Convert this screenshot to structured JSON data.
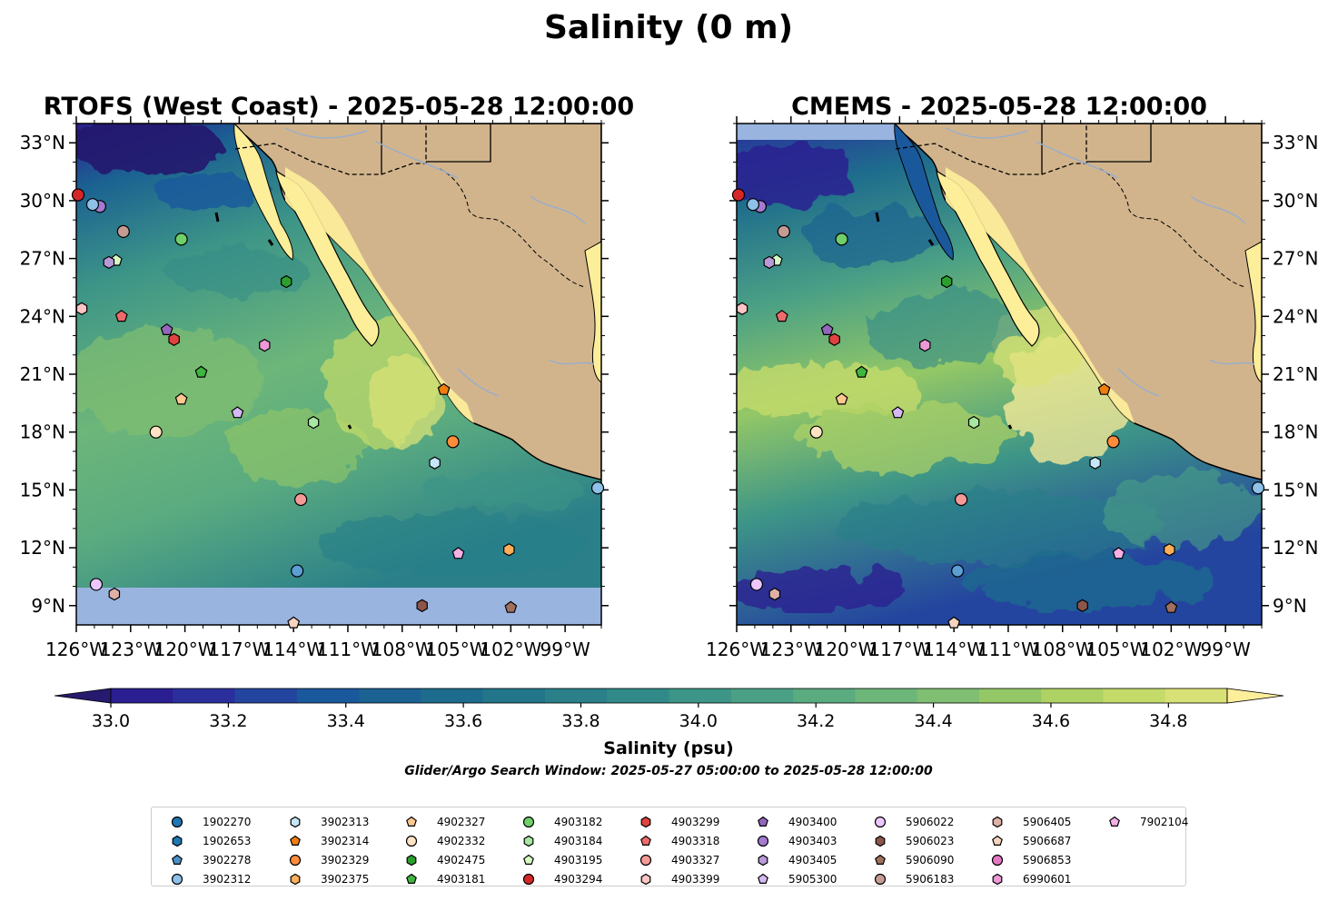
{
  "figure": {
    "suptitle": "Salinity (0 m)",
    "left_title": "RTOFS (West Coast) - 2025-05-28 12:00:00",
    "right_title": "CMEMS - 2025-05-28 12:00:00",
    "colorbar_label": "Salinity (psu)",
    "search_window": "Glider/Argo Search Window: 2025-05-27 05:00:00 to 2025-05-28 12:00:00"
  },
  "colors": {
    "land": "#d2b48c",
    "nodata": "#9ab4e0",
    "river": "#9aaecb",
    "high_salinity": "#fdee9a"
  },
  "chart_data": {
    "type": "map",
    "variable": "Salinity",
    "units": "psu",
    "lon_range": [
      -126,
      -97
    ],
    "lat_range": [
      8,
      34
    ],
    "lon_ticks": [
      "126°W",
      "123°W",
      "120°W",
      "117°W",
      "114°W",
      "111°W",
      "108°W",
      "105°W",
      "102°W",
      "99°W"
    ],
    "lat_ticks": [
      "33°N",
      "30°N",
      "27°N",
      "24°N",
      "21°N",
      "18°N",
      "15°N",
      "12°N",
      "9°N"
    ],
    "colorbar": {
      "min": 32.9,
      "max": 34.9,
      "step": 0.1,
      "ticks": [
        "33.0",
        "33.2",
        "33.4",
        "33.6",
        "33.8",
        "34.0",
        "34.2",
        "34.4",
        "34.6",
        "34.8"
      ],
      "extend": "both",
      "colors": [
        "#251a6e",
        "#2b1e91",
        "#2a2f9d",
        "#24459f",
        "#1a589c",
        "#1b6292",
        "#1e6c8d",
        "#23768a",
        "#2a7f89",
        "#328a88",
        "#3d9587",
        "#4aa085",
        "#5aab80",
        "#6db67a",
        "#80be71",
        "#94c866",
        "#aed264",
        "#c4db6a",
        "#d8e176",
        "#fdee9a"
      ]
    },
    "floats": [
      {
        "id": "1902270",
        "color": "#1f77b4",
        "marker": "circle"
      },
      {
        "id": "1902653",
        "color": "#1f77b4",
        "marker": "hexagon"
      },
      {
        "id": "3902278",
        "color": "#4a90c8",
        "marker": "pentagon"
      },
      {
        "id": "3902312",
        "color": "#8fc1e9",
        "marker": "circle",
        "lon": -97.2,
        "lat": 15.1
      },
      {
        "id": "3902313",
        "color": "#c6e7fa",
        "marker": "hexagon",
        "lon": -106.2,
        "lat": 16.4
      },
      {
        "id": "3902314",
        "color": "#f07d0f",
        "marker": "pentagon",
        "lon": -105.7,
        "lat": 20.2
      },
      {
        "id": "3902329",
        "color": "#ff8c3a",
        "marker": "circle",
        "lon": -105.2,
        "lat": 17.5
      },
      {
        "id": "3902375",
        "color": "#ffae5a",
        "marker": "hexagon",
        "lon": -102.1,
        "lat": 11.9
      },
      {
        "id": "4902327",
        "color": "#ffc791",
        "marker": "pentagon",
        "lon": -120.2,
        "lat": 19.7
      },
      {
        "id": "4902332",
        "color": "#ffe3c4",
        "marker": "circle",
        "lon": -121.6,
        "lat": 18.0
      },
      {
        "id": "4902475",
        "color": "#2ca02c",
        "marker": "hexagon",
        "lon": -114.4,
        "lat": 25.8
      },
      {
        "id": "4903181",
        "color": "#3fb63f",
        "marker": "pentagon",
        "lon": -119.1,
        "lat": 21.1
      },
      {
        "id": "4903182",
        "color": "#6fd06a",
        "marker": "circle",
        "lon": -120.2,
        "lat": 28.0
      },
      {
        "id": "4903184",
        "color": "#a7e8a0",
        "marker": "hexagon",
        "lon": -112.9,
        "lat": 18.5
      },
      {
        "id": "4903195",
        "color": "#d8fbc4",
        "marker": "pentagon",
        "lon": -123.8,
        "lat": 26.9
      },
      {
        "id": "4903294",
        "color": "#d62728",
        "marker": "circle",
        "lon": -125.9,
        "lat": 30.3
      },
      {
        "id": "4903299",
        "color": "#e0433f",
        "marker": "hexagon",
        "lon": -120.6,
        "lat": 22.8
      },
      {
        "id": "4903318",
        "color": "#ef6b6b",
        "marker": "pentagon",
        "lon": -123.5,
        "lat": 24.0
      },
      {
        "id": "4903327",
        "color": "#f59a96",
        "marker": "circle",
        "lon": -113.6,
        "lat": 14.5
      },
      {
        "id": "4903399",
        "color": "#ffc4c4",
        "marker": "hexagon",
        "lon": -125.7,
        "lat": 24.4
      },
      {
        "id": "4903400",
        "color": "#9467bd",
        "marker": "pentagon",
        "lon": -121.0,
        "lat": 23.3
      },
      {
        "id": "4903403",
        "color": "#a57ad0",
        "marker": "circle",
        "lon": -124.7,
        "lat": 29.7
      },
      {
        "id": "4903405",
        "color": "#b99ad9",
        "marker": "hexagon",
        "lon": -124.2,
        "lat": 26.8
      },
      {
        "id": "5905300",
        "color": "#d6b8f5",
        "marker": "pentagon",
        "lon": -117.1,
        "lat": 19.0
      },
      {
        "id": "5906022",
        "color": "#ecc6ff",
        "marker": "circle",
        "lon": -124.9,
        "lat": 10.1
      },
      {
        "id": "5906023",
        "color": "#8c564b",
        "marker": "hexagon",
        "lon": -106.9,
        "lat": 9.0
      },
      {
        "id": "5906090",
        "color": "#a0705e",
        "marker": "pentagon",
        "lon": -102.0,
        "lat": 8.9
      },
      {
        "id": "5906183",
        "color": "#c49c94",
        "marker": "circle",
        "lon": -123.4,
        "lat": 28.4
      },
      {
        "id": "5906405",
        "color": "#dfb1a6",
        "marker": "hexagon",
        "lon": -123.9,
        "lat": 9.6
      },
      {
        "id": "5906687",
        "color": "#f6d4c0",
        "marker": "pentagon",
        "lon": -114.0,
        "lat": 8.1
      },
      {
        "id": "5906853",
        "color": "#e377c2",
        "marker": "circle"
      },
      {
        "id": "6990601",
        "color": "#ee99d6",
        "marker": "hexagon",
        "lon": -115.6,
        "lat": 22.5
      },
      {
        "id": "7902104",
        "color": "#f5b0e6",
        "marker": "pentagon",
        "lon": -104.9,
        "lat": 11.7
      }
    ],
    "extra_markers": [
      {
        "color": "#8fc1e9",
        "marker": "circle",
        "lon": -125.1,
        "lat": 29.8
      },
      {
        "color": "#5a9ed4",
        "marker": "circle",
        "lon": -113.8,
        "lat": 10.8
      }
    ]
  }
}
